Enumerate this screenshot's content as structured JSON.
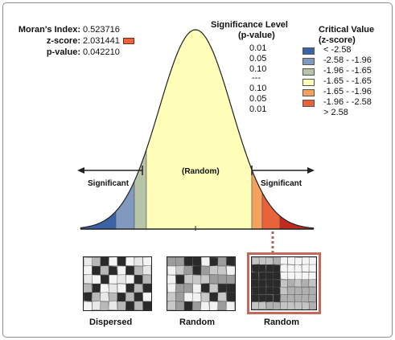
{
  "stats": {
    "moran_label": "Moran's Index:",
    "moran_value": "0.523716",
    "zscore_label": "z-score:",
    "zscore_value": "2.031441",
    "pvalue_label": "p-value:",
    "pvalue_value": "0.042210",
    "zscore_marker_color": "#e8623a"
  },
  "significance": {
    "title_line1": "Significance Level",
    "title_line2": "(p-value)",
    "levels": [
      "0.01",
      "0.05",
      "0.10",
      "---",
      "0.10",
      "0.05",
      "0.01"
    ]
  },
  "critical": {
    "title_line1": "Critical Value",
    "title_line2": "(z-score)",
    "values": [
      "< -2.58",
      "-2.58 - -1.96",
      "-1.96 - -1.65",
      "-1.65 - -1.65",
      "-1.65 - -1.96",
      "-1.96 - -2.58",
      "> 2.58"
    ],
    "colors": [
      "#3b63a8",
      "#8199bf",
      "#b8c4a8",
      "#ffffb9",
      "#f5a15f",
      "#e8623a",
      "#c42a1e"
    ]
  },
  "curve": {
    "center_label": "(Random)",
    "left_label": "Significant",
    "right_label": "Significant",
    "fill_center": "#ffffb9",
    "fill_left_outer": "#3b63a8",
    "fill_left_mid": "#8199bf",
    "fill_left_inner": "#b8c4a8",
    "fill_right_inner": "#f5a15f",
    "fill_right_mid": "#e8623a",
    "fill_right_outer": "#c42a1e"
  },
  "maps": {
    "labels": [
      "Dispersed",
      "Random",
      "Random"
    ],
    "highlight_color": "#c4695a"
  }
}
